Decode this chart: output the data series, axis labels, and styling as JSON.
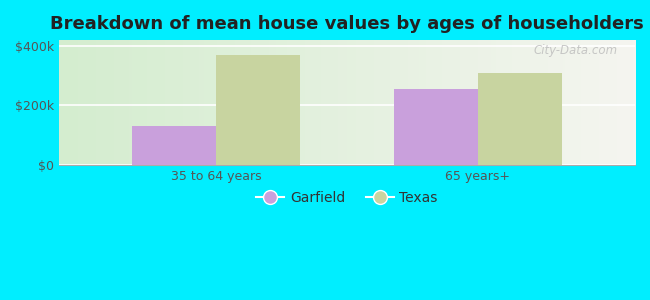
{
  "title": "Breakdown of mean house values by ages of householders",
  "categories": [
    "35 to 64 years",
    "65 years+"
  ],
  "garfield_values": [
    130000,
    255000
  ],
  "texas_values": [
    370000,
    310000
  ],
  "garfield_color": "#c9a0dc",
  "texas_color": "#c8d4a0",
  "background_color": "#00eeff",
  "plot_bg_left": "#d4edcf",
  "plot_bg_right": "#f5f5f0",
  "ylim": [
    0,
    420000
  ],
  "yticks": [
    0,
    200000,
    400000
  ],
  "ytick_labels": [
    "$0",
    "$200k",
    "$400k"
  ],
  "legend_labels": [
    "Garfield",
    "Texas"
  ],
  "bar_width": 0.32,
  "title_fontsize": 13,
  "axis_label_fontsize": 9,
  "legend_fontsize": 10,
  "watermark_text": "City-Data.com",
  "grid_color": "#ffffff",
  "tick_color": "#555555"
}
